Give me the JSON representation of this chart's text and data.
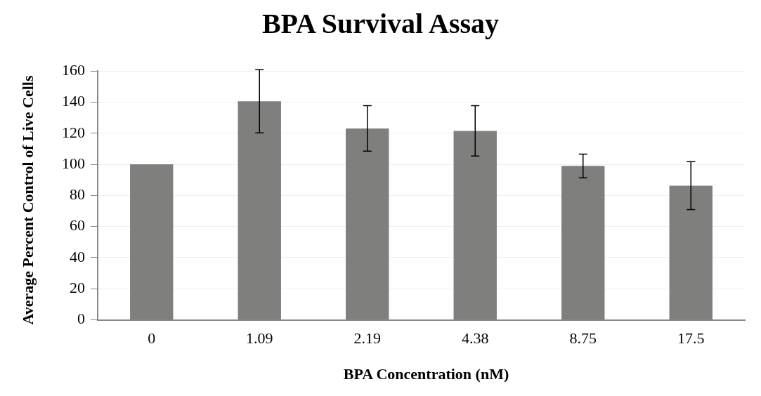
{
  "chart_data": {
    "type": "bar",
    "title": "BPA Survival Assay",
    "xlabel": "BPA Concentration (nM)",
    "ylabel": "Average Percent Control of Live Cells",
    "categories": [
      "0",
      "1.09",
      "2.19",
      "4.38",
      "8.75",
      "17.5"
    ],
    "values": [
      100,
      140.6,
      123.1,
      121.5,
      99.0,
      86.3
    ],
    "errors": [
      null,
      20.3,
      14.6,
      16.2,
      7.6,
      15.4
    ],
    "color": "#7f7f7e",
    "ylim": [
      0,
      160
    ],
    "yticks": [
      0,
      20,
      40,
      60,
      80,
      100,
      120,
      140,
      160
    ],
    "grid": "y"
  }
}
